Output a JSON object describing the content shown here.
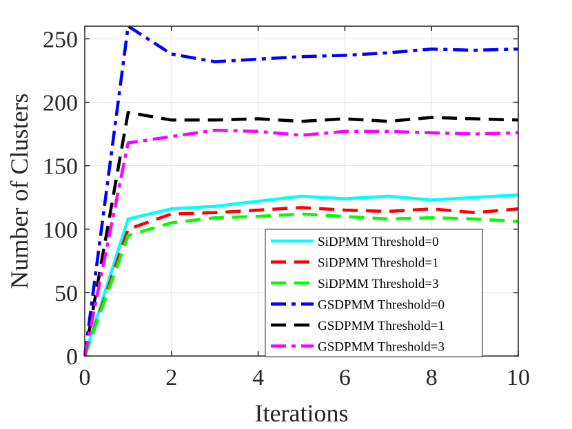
{
  "chart_data": {
    "type": "line",
    "title": "",
    "xlabel": "Iterations",
    "ylabel": "Number of Clusters",
    "xlim": [
      0,
      10
    ],
    "ylim": [
      0,
      260
    ],
    "xticks": [
      0,
      2,
      4,
      6,
      8,
      10
    ],
    "yticks": [
      0,
      50,
      100,
      150,
      200,
      250
    ],
    "grid": true,
    "legend_position": "bottom-right",
    "x": [
      0,
      1,
      2,
      3,
      4,
      5,
      6,
      7,
      8,
      9,
      10
    ],
    "series": [
      {
        "name": "SiDPMM Threshold=0",
        "color": "#00FFFF",
        "dash": "solid",
        "values": [
          0,
          108,
          116,
          118,
          122,
          126,
          124,
          126,
          123,
          125,
          127
        ]
      },
      {
        "name": "SiDPMM Threshold=1",
        "color": "#FF0000",
        "dash": "dash",
        "values": [
          0,
          100,
          112,
          113,
          115,
          117,
          115,
          114,
          116,
          113,
          116
        ]
      },
      {
        "name": "SiDPMM Threshold=3",
        "color": "#00FF00",
        "dash": "dash",
        "values": [
          0,
          95,
          105,
          109,
          110,
          112,
          110,
          108,
          109,
          108,
          106
        ]
      },
      {
        "name": "GSDPMM Threshold=0",
        "color": "#0000FF",
        "dash": "dashdot",
        "values": [
          0,
          260,
          238,
          232,
          234,
          236,
          237,
          239,
          242,
          241,
          242
        ]
      },
      {
        "name": "GSDPMM Threshold=1",
        "color": "#000000",
        "dash": "dash",
        "values": [
          0,
          192,
          186,
          186,
          187,
          185,
          187,
          185,
          188,
          187,
          186
        ]
      },
      {
        "name": "GSDPMM Threshold=3",
        "color": "#FF00FF",
        "dash": "dashdot",
        "values": [
          0,
          168,
          173,
          178,
          177,
          174,
          177,
          177,
          176,
          175,
          176
        ]
      }
    ]
  }
}
